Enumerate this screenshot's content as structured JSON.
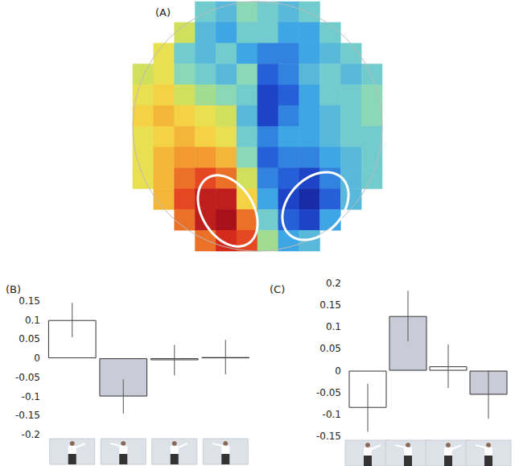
{
  "chart_data": [
    {
      "type": "heatmap",
      "title": "(A)",
      "tick_labels": false,
      "color_range": [
        -1,
        1
      ],
      "cells": [
        [
          null,
          null,
          null,
          -0.3,
          -0.4,
          -0.2,
          -0.3,
          -0.4,
          -0.3,
          null,
          null,
          null
        ],
        [
          null,
          null,
          0.1,
          -0.4,
          -0.5,
          -0.3,
          -0.3,
          -0.5,
          -0.5,
          -0.3,
          null,
          null
        ],
        [
          null,
          0.2,
          -0.3,
          -0.4,
          -0.3,
          -0.5,
          -0.6,
          -0.6,
          -0.5,
          -0.4,
          -0.3,
          null
        ],
        [
          0.1,
          0.2,
          -0.2,
          -0.3,
          -0.4,
          -0.2,
          -0.7,
          -0.6,
          -0.4,
          -0.3,
          -0.4,
          -0.3
        ],
        [
          0.2,
          0.3,
          0.1,
          -0.1,
          -0.2,
          -0.3,
          -0.8,
          -0.7,
          -0.5,
          -0.3,
          -0.3,
          -0.2
        ],
        [
          0.3,
          0.4,
          0.3,
          0.2,
          0.1,
          -0.4,
          -0.8,
          -0.6,
          -0.5,
          -0.4,
          -0.3,
          -0.2
        ],
        [
          0.2,
          0.3,
          0.4,
          0.3,
          0.2,
          -0.3,
          -0.6,
          -0.5,
          -0.5,
          -0.4,
          -0.3,
          -0.3
        ],
        [
          0.2,
          0.4,
          0.5,
          0.5,
          0.4,
          -0.2,
          -0.7,
          -0.6,
          -0.6,
          -0.5,
          -0.4,
          -0.3
        ],
        [
          0.2,
          0.4,
          0.6,
          0.7,
          0.6,
          0.1,
          -0.6,
          -0.7,
          -0.8,
          -0.6,
          -0.4,
          -0.3
        ],
        [
          null,
          0.4,
          0.7,
          0.9,
          0.9,
          0.3,
          -0.5,
          -0.8,
          -0.9,
          -0.7,
          -0.4,
          null
        ],
        [
          null,
          null,
          0.6,
          0.9,
          1.0,
          0.6,
          -0.3,
          -0.7,
          -0.8,
          -0.5,
          null,
          null
        ],
        [
          null,
          null,
          null,
          0.6,
          0.8,
          0.7,
          -0.1,
          -0.5,
          -0.4,
          null,
          null,
          null
        ]
      ]
    },
    {
      "type": "bar",
      "title": "(B)",
      "tick_labels": "y",
      "categories": [
        null,
        null,
        null,
        null
      ],
      "values": [
        0.1,
        -0.1,
        -0.005,
        0.003
      ],
      "errors": [
        0.045,
        0.045,
        0.04,
        0.045
      ],
      "colors": [
        "#ffffff",
        "#c9ccd6",
        "#ffffff",
        "#c9ccd6"
      ],
      "ylim": [
        -0.2,
        0.15
      ],
      "yticks": [
        -0.2,
        -0.15,
        -0.1,
        -0.05,
        0,
        0.05,
        0.1,
        0.15
      ]
    },
    {
      "type": "bar",
      "title": "(C)",
      "tick_labels": "y",
      "categories": [
        null,
        null,
        null,
        null
      ],
      "values": [
        -0.085,
        0.125,
        0.01,
        -0.055
      ],
      "errors": [
        0.055,
        0.058,
        0.05,
        0.055
      ],
      "colors": [
        "#ffffff",
        "#c9ccd6",
        "#ffffff",
        "#c9ccd6"
      ],
      "ylim": [
        -0.15,
        0.2
      ],
      "yticks": [
        -0.15,
        -0.1,
        -0.05,
        0,
        0.05,
        0.1,
        0.15,
        0.2
      ]
    }
  ]
}
